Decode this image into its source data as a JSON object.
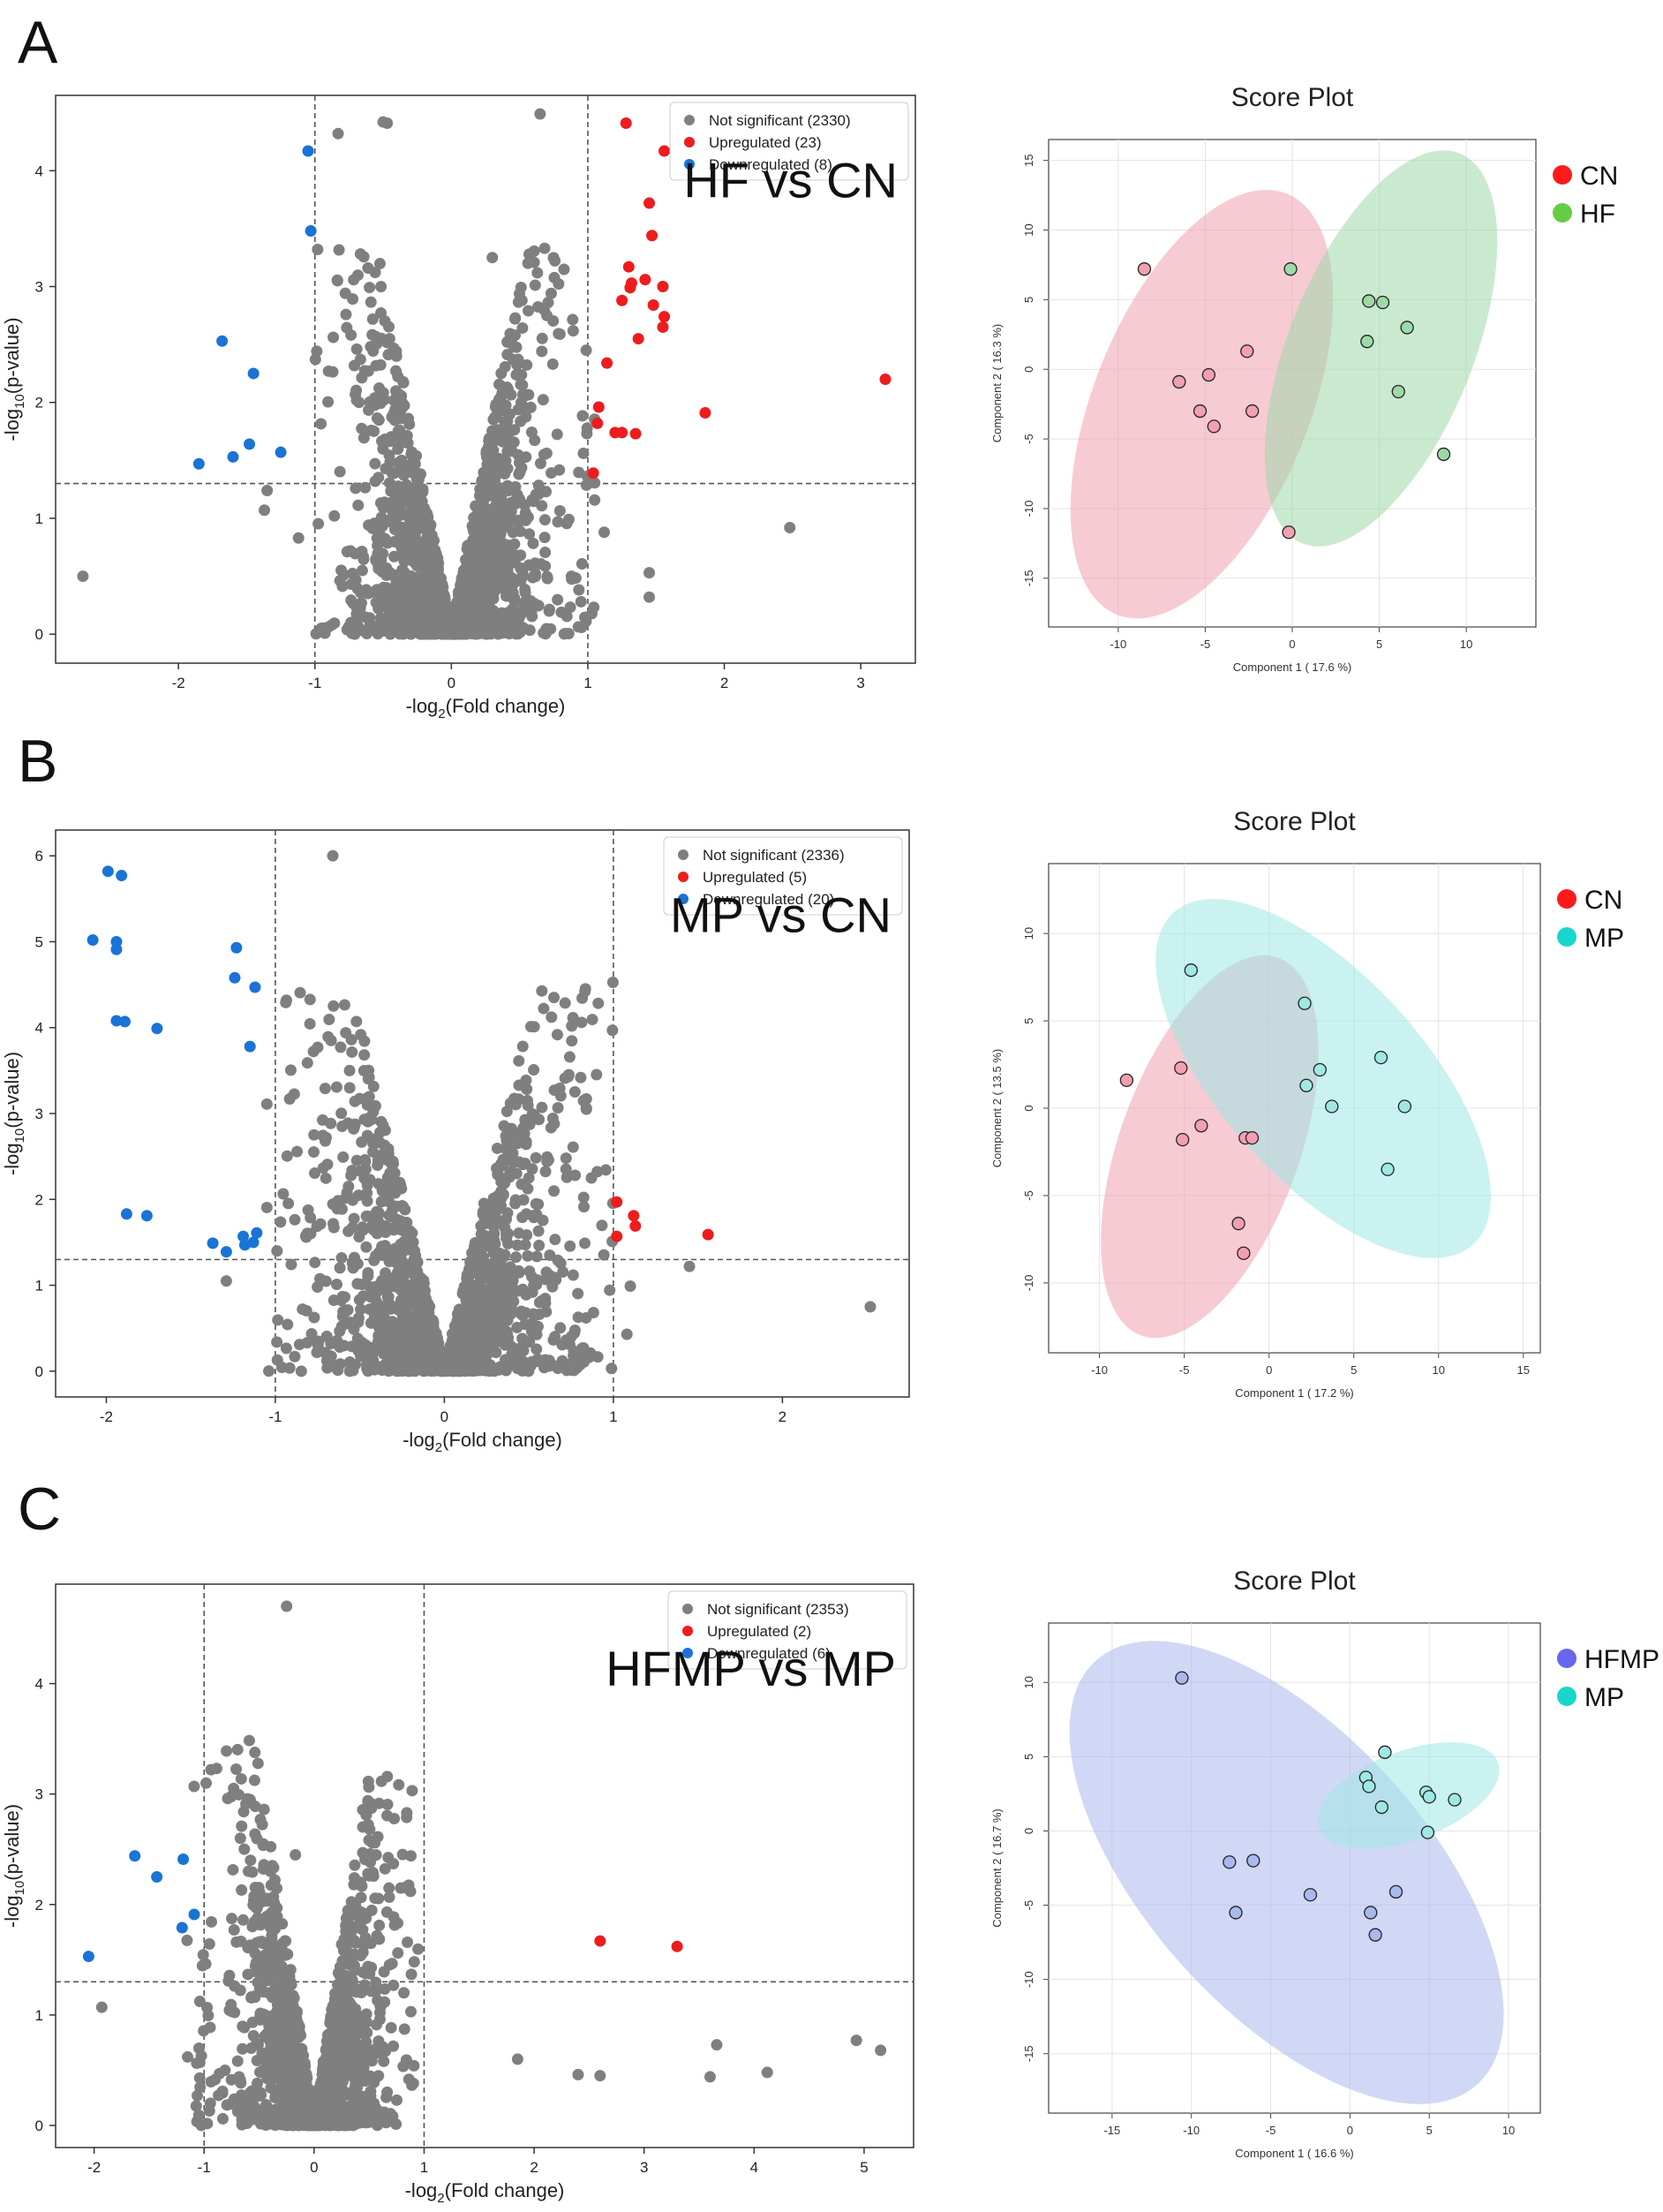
{
  "panels": [
    {
      "letter": "A"
    },
    {
      "letter": "B"
    },
    {
      "letter": "C"
    }
  ],
  "colors": {
    "not_significant": "#7f7f7f",
    "upregulated": "#ee1c1c",
    "downregulated": "#1a73d6",
    "cn": "#f0a0b0",
    "hf": "#9ed9a8",
    "mp": "#9fe8e4",
    "hfmp": "#a9b8ee",
    "legend_cn": "#ff1a1a",
    "legend_hf": "#66cc44",
    "legend_mp": "#19d6cc",
    "legend_hfmp": "#6666ee"
  },
  "chart_data": [
    {
      "type": "scatter",
      "subtype": "volcano",
      "annotation": "HF vs CN",
      "xlabel": "-log2(Fold change)",
      "ylabel": "-log10(p-value)",
      "xlim": [
        -2.9,
        3.4
      ],
      "ylim": [
        -0.25,
        4.65
      ],
      "xticks": [
        -2,
        -1,
        0,
        1,
        2,
        3
      ],
      "yticks": [
        0,
        1,
        2,
        3,
        4
      ],
      "thresholds": {
        "fold_change": [
          -1,
          1
        ],
        "p_value_line": 1.3
      },
      "legend": [
        {
          "label": "Not significant (2330)",
          "group": "not_significant"
        },
        {
          "label": "Upregulated (23)",
          "group": "upregulated"
        },
        {
          "label": "Downregulated (8)",
          "group": "downregulated"
        }
      ],
      "downregulated": [
        [
          -1.05,
          4.17
        ],
        [
          -1.03,
          3.48
        ],
        [
          -1.68,
          2.53
        ],
        [
          -1.45,
          2.25
        ],
        [
          -1.48,
          1.64
        ],
        [
          -1.6,
          1.53
        ],
        [
          -1.85,
          1.47
        ],
        [
          -1.25,
          1.57
        ]
      ],
      "upregulated": [
        [
          1.28,
          4.41
        ],
        [
          1.56,
          4.17
        ],
        [
          1.45,
          3.72
        ],
        [
          1.47,
          3.44
        ],
        [
          1.3,
          3.17
        ],
        [
          1.42,
          3.06
        ],
        [
          1.32,
          3.03
        ],
        [
          1.31,
          2.99
        ],
        [
          1.55,
          3.0
        ],
        [
          1.25,
          2.88
        ],
        [
          1.48,
          2.84
        ],
        [
          1.56,
          2.74
        ],
        [
          1.55,
          2.65
        ],
        [
          1.37,
          2.55
        ],
        [
          3.18,
          2.2
        ],
        [
          1.14,
          2.34
        ],
        [
          1.08,
          1.96
        ],
        [
          1.07,
          1.82
        ],
        [
          1.86,
          1.91
        ],
        [
          1.2,
          1.74
        ],
        [
          1.25,
          1.74
        ],
        [
          1.35,
          1.73
        ],
        [
          1.04,
          1.39
        ]
      ],
      "not_significant_highlights": [
        [
          -2.7,
          0.5
        ],
        [
          -0.83,
          4.32
        ],
        [
          0.65,
          4.49
        ],
        [
          -0.5,
          4.42
        ],
        [
          -0.47,
          4.41
        ],
        [
          -0.98,
          3.32
        ],
        [
          -1.35,
          1.24
        ],
        [
          -1.37,
          1.07
        ],
        [
          -1.12,
          0.83
        ],
        [
          -0.9,
          2.27
        ],
        [
          2.48,
          0.92
        ],
        [
          1.45,
          0.53
        ],
        [
          1.45,
          0.32
        ],
        [
          0.95,
          0.28
        ],
        [
          0.88,
          0.5
        ],
        [
          1.12,
          0.88
        ],
        [
          0.3,
          3.25
        ],
        [
          0.68,
          2.8
        ],
        [
          0.7,
          2.75
        ]
      ],
      "not_significant_cloud": {
        "count": 2330,
        "x_range": [
          -1.0,
          1.0
        ],
        "shape": "volcano"
      }
    },
    {
      "type": "scatter",
      "subtype": "pca_score_plot",
      "title": "Score Plot",
      "xlabel": "Component 1 ( 17.6 %)",
      "ylabel": "Component 2 ( 16.3 %)",
      "xlim": [
        -14,
        14
      ],
      "ylim": [
        -18.5,
        16.5
      ],
      "xticks": [
        -10,
        -5,
        0,
        5,
        10
      ],
      "yticks": [
        15,
        10,
        5,
        0,
        -5,
        -10,
        -15
      ],
      "groups": [
        {
          "name": "CN",
          "color_key": "cn",
          "legend_color_key": "legend_cn",
          "points": [
            [
              -8.5,
              7.2
            ],
            [
              -6.5,
              -0.9
            ],
            [
              -4.8,
              -0.4
            ],
            [
              -5.3,
              -3.0
            ],
            [
              -4.5,
              -4.1
            ],
            [
              -2.6,
              1.3
            ],
            [
              -2.3,
              -3.0
            ],
            [
              -0.2,
              -11.7
            ]
          ],
          "ellipse": {
            "cx": -5.2,
            "cy": -2.5,
            "rx": 6.2,
            "ry": 16.3,
            "angle_deg": 22
          }
        },
        {
          "name": "HF",
          "color_key": "hf",
          "legend_color_key": "legend_hf",
          "points": [
            [
              -0.1,
              7.2
            ],
            [
              4.4,
              4.9
            ],
            [
              5.2,
              4.8
            ],
            [
              6.6,
              3.0
            ],
            [
              4.3,
              2.0
            ],
            [
              6.1,
              -1.6
            ],
            [
              8.7,
              -6.1
            ]
          ],
          "ellipse": {
            "cx": 5.1,
            "cy": 1.5,
            "rx": 5.3,
            "ry": 15.1,
            "angle_deg": 22
          }
        }
      ]
    },
    {
      "type": "scatter",
      "subtype": "volcano",
      "annotation": "MP vs CN",
      "xlabel": "-log2(Fold change)",
      "ylabel": "-log10(p-value)",
      "xlim": [
        -2.3,
        2.75
      ],
      "ylim": [
        -0.3,
        6.3
      ],
      "xticks": [
        -2,
        -1,
        0,
        1,
        2
      ],
      "yticks": [
        0,
        1,
        2,
        3,
        4,
        5,
        6
      ],
      "thresholds": {
        "fold_change": [
          -1,
          1
        ],
        "p_value_line": 1.3
      },
      "legend": [
        {
          "label": "Not significant (2336)",
          "group": "not_significant"
        },
        {
          "label": "Upregulated (5)",
          "group": "upregulated"
        },
        {
          "label": "Downregulated (20)",
          "group": "downregulated"
        }
      ],
      "downregulated": [
        [
          -1.99,
          5.82
        ],
        [
          -1.91,
          5.77
        ],
        [
          -2.08,
          5.02
        ],
        [
          -1.94,
          5.0
        ],
        [
          -1.94,
          4.91
        ],
        [
          -1.23,
          4.93
        ],
        [
          -1.24,
          4.58
        ],
        [
          -1.12,
          4.47
        ],
        [
          -1.94,
          4.08
        ],
        [
          -1.89,
          4.07
        ],
        [
          -1.7,
          3.99
        ],
        [
          -1.15,
          3.78
        ],
        [
          -1.88,
          1.83
        ],
        [
          -1.76,
          1.81
        ],
        [
          -1.37,
          1.49
        ],
        [
          -1.19,
          1.57
        ],
        [
          -1.11,
          1.61
        ],
        [
          -1.18,
          1.47
        ],
        [
          -1.13,
          1.5
        ],
        [
          -1.29,
          1.39
        ]
      ],
      "upregulated": [
        [
          1.02,
          1.97
        ],
        [
          1.12,
          1.81
        ],
        [
          1.13,
          1.69
        ],
        [
          1.56,
          1.59
        ],
        [
          1.02,
          1.57
        ]
      ],
      "not_significant_highlights": [
        [
          -0.66,
          6.0
        ],
        [
          -0.67,
          3.85
        ],
        [
          2.52,
          0.75
        ],
        [
          0.84,
          3.17
        ],
        [
          0.84,
          3.05
        ],
        [
          0.56,
          2.93
        ],
        [
          0.65,
          2.88
        ],
        [
          0.72,
          2.48
        ],
        [
          -0.43,
          2.93
        ],
        [
          0.5,
          2.25
        ],
        [
          1.45,
          1.22
        ],
        [
          1.1,
          0.99
        ],
        [
          -1.29,
          1.05
        ],
        [
          -0.99,
          1.4
        ],
        [
          1.08,
          0.43
        ]
      ],
      "not_significant_cloud": {
        "count": 2336,
        "x_range": [
          -1.0,
          1.0
        ],
        "shape": "volcano"
      }
    },
    {
      "type": "scatter",
      "subtype": "pca_score_plot",
      "title": "Score Plot",
      "xlabel": "Component 1 ( 17.2 %)",
      "ylabel": "Component 2 ( 13.5 %)",
      "xlim": [
        -13,
        16
      ],
      "ylim": [
        -14,
        14
      ],
      "xticks": [
        -10,
        -5,
        0,
        5,
        10,
        15
      ],
      "yticks": [
        10,
        5,
        0,
        -5,
        -10
      ],
      "groups": [
        {
          "name": "CN",
          "color_key": "cn",
          "legend_color_key": "legend_cn",
          "points": [
            [
              -8.4,
              1.6
            ],
            [
              -5.2,
              2.3
            ],
            [
              -4.0,
              -1.0
            ],
            [
              -5.1,
              -1.8
            ],
            [
              -1.4,
              -1.7
            ],
            [
              -1.0,
              -1.7
            ],
            [
              -1.8,
              -6.6
            ],
            [
              -1.5,
              -8.3
            ]
          ],
          "ellipse": {
            "cx": -3.5,
            "cy": -2.2,
            "rx": 5.3,
            "ry": 11.5,
            "angle_deg": 20
          }
        },
        {
          "name": "MP",
          "color_key": "mp",
          "legend_color_key": "legend_mp",
          "points": [
            [
              -4.6,
              7.9
            ],
            [
              2.1,
              6.0
            ],
            [
              3.0,
              2.2
            ],
            [
              6.6,
              2.9
            ],
            [
              2.2,
              1.3
            ],
            [
              3.7,
              0.1
            ],
            [
              8.0,
              0.1
            ],
            [
              7.0,
              -3.5
            ]
          ],
          "ellipse": {
            "cx": 3.2,
            "cy": 1.7,
            "rx": 6.0,
            "ry": 12.8,
            "angle_deg": -42
          }
        }
      ]
    },
    {
      "type": "scatter",
      "subtype": "volcano",
      "annotation": "HFMP vs MP",
      "xlabel": "-log2(Fold change)",
      "ylabel": "-log10(p-value)",
      "xlim": [
        -2.35,
        5.45
      ],
      "ylim": [
        -0.2,
        4.9
      ],
      "xticks": [
        -2,
        -1,
        0,
        1,
        2,
        3,
        4,
        5
      ],
      "yticks": [
        0,
        1,
        2,
        3,
        4
      ],
      "thresholds": {
        "fold_change": [
          -1,
          1
        ],
        "p_value_line": 1.3
      },
      "legend": [
        {
          "label": "Not significant (2353)",
          "group": "not_significant"
        },
        {
          "label": "Upregulated (2)",
          "group": "upregulated"
        },
        {
          "label": "Downregulated (6)",
          "group": "downregulated"
        }
      ],
      "downregulated": [
        [
          -1.63,
          2.44
        ],
        [
          -1.19,
          2.41
        ],
        [
          -1.43,
          2.25
        ],
        [
          -1.09,
          1.91
        ],
        [
          -1.2,
          1.79
        ],
        [
          -2.05,
          1.53
        ]
      ],
      "upregulated": [
        [
          2.6,
          1.67
        ],
        [
          3.3,
          1.62
        ]
      ],
      "not_significant_highlights": [
        [
          -0.25,
          4.7
        ],
        [
          -0.62,
          2.91
        ],
        [
          -0.64,
          2.84
        ],
        [
          -0.17,
          2.45
        ],
        [
          -0.67,
          2.6
        ],
        [
          -1.93,
          1.07
        ],
        [
          -1.15,
          0.62
        ],
        [
          -1.04,
          0.57
        ],
        [
          -1.04,
          0.43
        ],
        [
          4.93,
          0.77
        ],
        [
          5.15,
          0.68
        ],
        [
          3.66,
          0.73
        ],
        [
          4.12,
          0.48
        ],
        [
          3.6,
          0.44
        ],
        [
          2.4,
          0.46
        ],
        [
          2.6,
          0.45
        ],
        [
          1.85,
          0.6
        ],
        [
          0.88,
          1.03
        ],
        [
          0.6,
          1.1
        ],
        [
          0.52,
          1.43
        ]
      ],
      "not_significant_cloud": {
        "count": 2353,
        "x_range": [
          -1.1,
          0.9
        ],
        "shape": "volcano"
      }
    },
    {
      "type": "scatter",
      "subtype": "pca_score_plot",
      "title": "Score Plot",
      "xlabel": "Component 1 ( 16.6 %)",
      "ylabel": "Component 2 ( 16.7 %)",
      "xlim": [
        -19,
        12
      ],
      "ylim": [
        -19,
        14
      ],
      "xticks": [
        -15,
        -10,
        -5,
        0,
        5,
        10
      ],
      "yticks": [
        10,
        5,
        0,
        -5,
        -10,
        -15
      ],
      "groups": [
        {
          "name": "HFMP",
          "color_key": "hfmp",
          "legend_color_key": "legend_hfmp",
          "points": [
            [
              -10.6,
              10.3
            ],
            [
              -7.6,
              -2.1
            ],
            [
              -6.1,
              -2.0
            ],
            [
              -7.2,
              -5.5
            ],
            [
              -2.5,
              -4.3
            ],
            [
              2.9,
              -4.1
            ],
            [
              1.3,
              -5.5
            ],
            [
              1.6,
              -7.0
            ]
          ],
          "ellipse": {
            "cx": -4.0,
            "cy": -2.8,
            "rx": 8.8,
            "ry": 19.2,
            "angle_deg": -42
          }
        },
        {
          "name": "MP",
          "color_key": "mp",
          "legend_color_key": "legend_mp",
          "points": [
            [
              2.2,
              5.3
            ],
            [
              1.0,
              3.6
            ],
            [
              1.2,
              3.0
            ],
            [
              4.8,
              2.6
            ],
            [
              5.0,
              2.3
            ],
            [
              6.6,
              2.1
            ],
            [
              2.0,
              1.6
            ],
            [
              4.9,
              -0.1
            ]
          ],
          "ellipse": {
            "cx": 3.7,
            "cy": 2.4,
            "rx": 6.0,
            "ry": 3.0,
            "angle_deg": -20
          }
        }
      ]
    }
  ]
}
